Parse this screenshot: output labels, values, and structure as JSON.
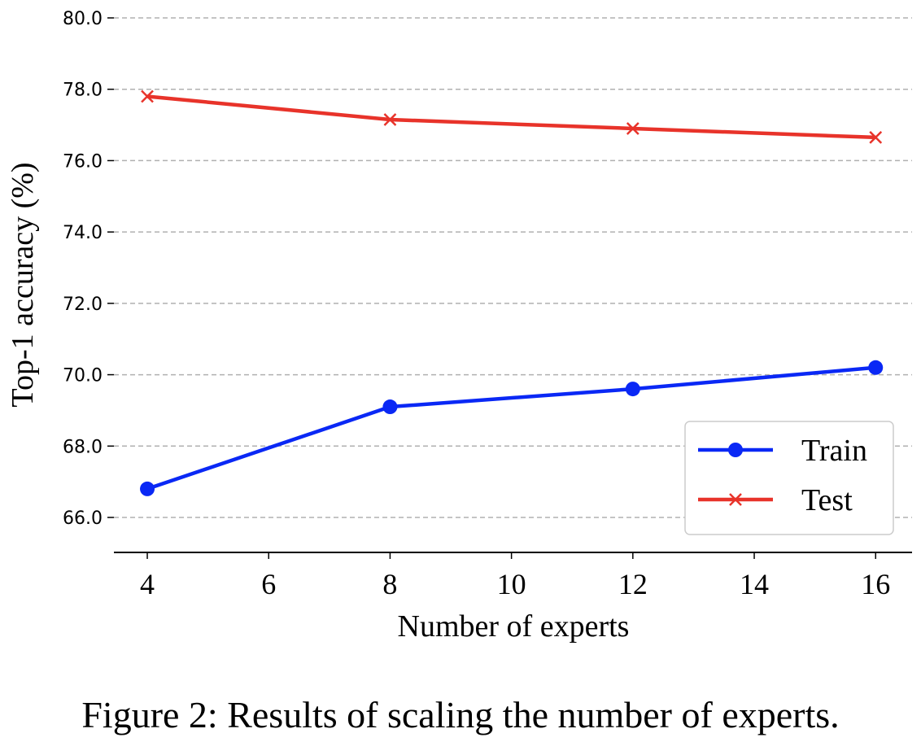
{
  "caption": "Figure 2: Results of scaling the number of experts.",
  "chart_data": {
    "type": "line",
    "title": "",
    "xlabel": "Number of experts",
    "ylabel": "Top-1 accuracy (%)",
    "xlim": [
      3.45,
      16.6
    ],
    "ylim": [
      65.0,
      80.0
    ],
    "xticks": [
      4,
      6,
      8,
      10,
      12,
      14,
      16
    ],
    "xtick_labels": [
      "4",
      "6",
      "8",
      "10",
      "12",
      "14",
      "16"
    ],
    "yticks": [
      66,
      68,
      70,
      72,
      74,
      76,
      78,
      80
    ],
    "ytick_labels": [
      "66.0",
      "68.0",
      "70.0",
      "72.0",
      "74.0",
      "76.0",
      "78.0",
      "80.0"
    ],
    "grid": "y-dashed",
    "legend_position": "lower-right",
    "x": [
      4,
      8,
      12,
      16
    ],
    "series": [
      {
        "name": "Train",
        "values": [
          66.8,
          69.1,
          69.6,
          70.2
        ],
        "color": "#0a28f5",
        "marker": "circle"
      },
      {
        "name": "Test",
        "values": [
          77.8,
          77.15,
          76.9,
          76.65
        ],
        "color": "#e8332a",
        "marker": "x"
      }
    ]
  }
}
